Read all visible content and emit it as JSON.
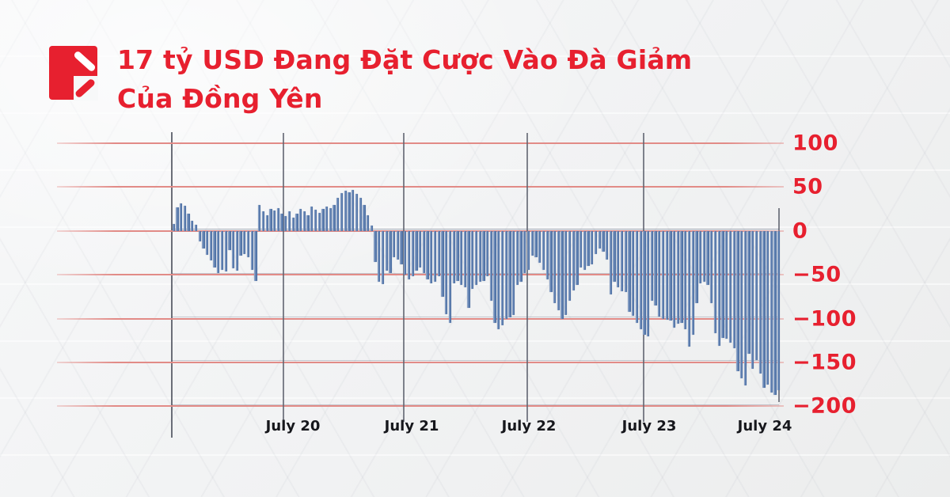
{
  "header": {
    "title_line1": "17 tỷ USD Đang Đặt Cược Vào Đà Giảm",
    "title_line2": "Của Đồng Yên"
  },
  "colors": {
    "accent_red": "#e7202f",
    "gridline_red": "#e28b87",
    "gridline_dark": "#2a3452",
    "axis_text_dark": "#16171c",
    "bar_fill": "#5578aa",
    "bar_fill_light": "#9db1cd",
    "background": "#f1f2f3"
  },
  "chart_data": {
    "type": "bar",
    "title": "17 tỷ USD Đang Đặt Cược Vào Đà Giảm Của Đồng Yên",
    "xlabel": "",
    "ylabel": "",
    "ylim": [
      -200,
      100
    ],
    "grid": true,
    "y_ticks": [
      100,
      50,
      0,
      -50,
      -100,
      -150,
      -200
    ],
    "x_ticks": [
      "July 20",
      "July 21",
      "July 22",
      "July 23",
      "July 24"
    ],
    "values": [
      8,
      27,
      31,
      29,
      20,
      12,
      7,
      -12,
      -20,
      -27,
      -34,
      -42,
      -48,
      -44,
      -46,
      -22,
      -43,
      -45,
      -28,
      -26,
      -30,
      -44,
      -57,
      30,
      22,
      18,
      25,
      23,
      26,
      20,
      17,
      22,
      15,
      20,
      25,
      22,
      18,
      28,
      24,
      21,
      25,
      28,
      26,
      30,
      38,
      43,
      46,
      44,
      47,
      42,
      38,
      30,
      18,
      6,
      -35,
      -58,
      -61,
      -45,
      -48,
      -30,
      -33,
      -38,
      -50,
      -55,
      -52,
      -45,
      -42,
      -48,
      -55,
      -60,
      -58,
      -52,
      -75,
      -95,
      -105,
      -60,
      -57,
      -62,
      -64,
      -88,
      -66,
      -62,
      -58,
      -57,
      -52,
      -80,
      -105,
      -112,
      -108,
      -100,
      -99,
      -96,
      -62,
      -58,
      -48,
      -44,
      -28,
      -30,
      -36,
      -44,
      -55,
      -70,
      -82,
      -90,
      -100,
      -96,
      -80,
      -68,
      -62,
      -42,
      -44,
      -40,
      -38,
      -26,
      -20,
      -24,
      -33,
      -72,
      -58,
      -64,
      -69,
      -70,
      -92,
      -97,
      -105,
      -112,
      -118,
      -120,
      -80,
      -85,
      -98,
      -100,
      -101,
      -102,
      -110,
      -106,
      -105,
      -112,
      -132,
      -118,
      -82,
      -60,
      -58,
      -62,
      -82,
      -117,
      -131,
      -122,
      -123,
      -127,
      -134,
      -160,
      -168,
      -176,
      -140,
      -157,
      -147,
      -163,
      -179,
      -175,
      -184,
      -187,
      -182
    ]
  }
}
